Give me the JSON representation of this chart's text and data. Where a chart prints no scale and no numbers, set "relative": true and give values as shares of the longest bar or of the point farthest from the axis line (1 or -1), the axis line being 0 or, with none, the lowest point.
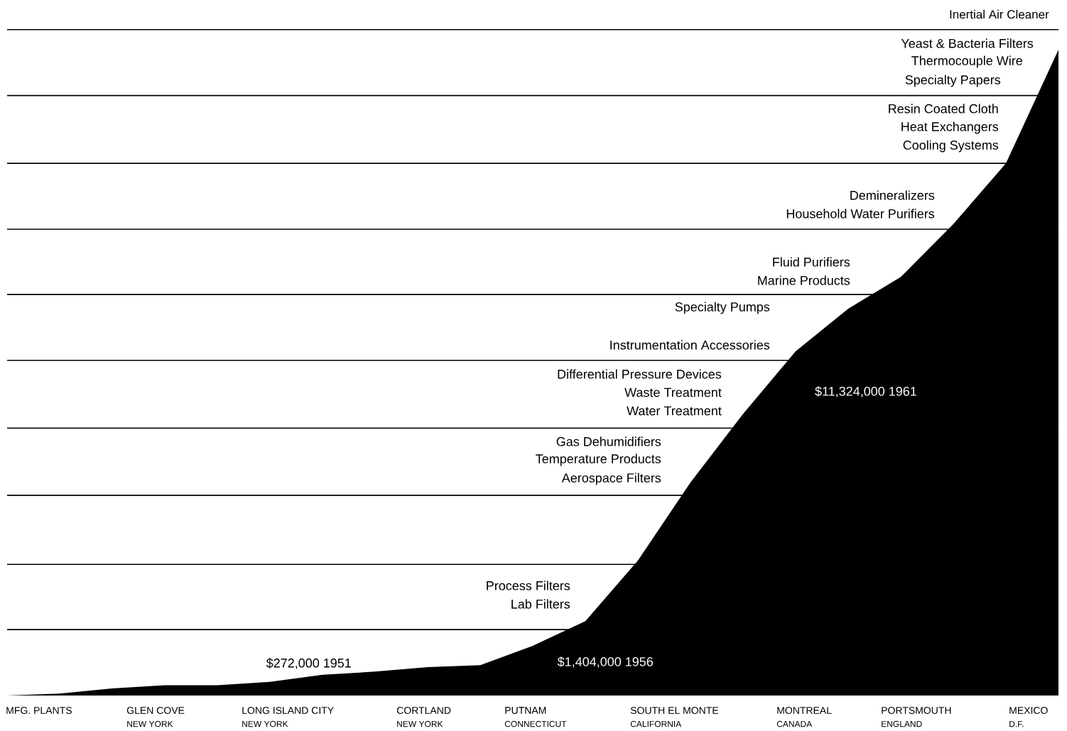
{
  "chart_data": {
    "type": "area",
    "relative": true,
    "categories": [
      null,
      null,
      null,
      null,
      null,
      null,
      null,
      null,
      null,
      null,
      null,
      null,
      null,
      null,
      null,
      null,
      null,
      null,
      null,
      null,
      null
    ],
    "series": [
      {
        "color": "#000000",
        "values": [
          0,
          0.003,
          0.011,
          0.016,
          0.016,
          0.021,
          0.032,
          0.037,
          0.044,
          0.047,
          0.077,
          0.115,
          0.209,
          0.33,
          0.436,
          0.533,
          0.599,
          0.648,
          0.73,
          0.824,
          1.0
        ]
      }
    ],
    "ref_lines": [
      {
        "axis": "y",
        "value": 0.102,
        "color": "#000000"
      },
      {
        "axis": "y",
        "value": 0.203,
        "color": "#000000"
      },
      {
        "axis": "y",
        "value": 0.31,
        "color": "#000000"
      },
      {
        "axis": "y",
        "value": 0.414,
        "color": "#000000"
      },
      {
        "axis": "y",
        "value": 0.519,
        "color": "#000000"
      },
      {
        "axis": "y",
        "value": 0.621,
        "color": "#000000"
      },
      {
        "axis": "y",
        "value": 0.722,
        "color": "#000000"
      },
      {
        "axis": "y",
        "value": 0.824,
        "color": "#000000"
      },
      {
        "axis": "y",
        "value": 0.929,
        "color": "#000000"
      },
      {
        "axis": "y",
        "value": 1.031,
        "color": "#000000"
      }
    ],
    "annotations": [
      "Inertial Air Cleaner",
      "Yeast & Bacteria Filters",
      "Thermocouple Wire",
      "Specialty Papers",
      "Resin Coated Cloth",
      "Heat Exchangers",
      "Cooling Systems",
      "Demineralizers",
      "Household Water Purifiers",
      "Fluid Purifiers",
      "Marine Products",
      "Specialty Pumps",
      "Instrumentation Accessories",
      "Differential Pressure Devices",
      "Waste Treatment",
      "Water Treatment",
      "Gas Dehumidifiers",
      "Temperature Products",
      "Aerospace Filters",
      "Process Filters",
      "Lab Filters",
      "$272,000  1951",
      "$1,404,000  1956",
      "$11,324,000  1961",
      "MFG. PLANTS",
      "GLEN COVE",
      "NEW YORK",
      "LONG ISLAND CITY",
      "NEW YORK",
      "CORTLAND",
      "NEW YORK",
      "PUTNAM",
      "CONNECTICUT",
      "SOUTH EL MONTE",
      "CALIFORNIA",
      "MONTREAL",
      "CANADA",
      "PORTSMOUTH",
      "ENGLAND",
      "MEXICO",
      "D.F."
    ]
  }
}
